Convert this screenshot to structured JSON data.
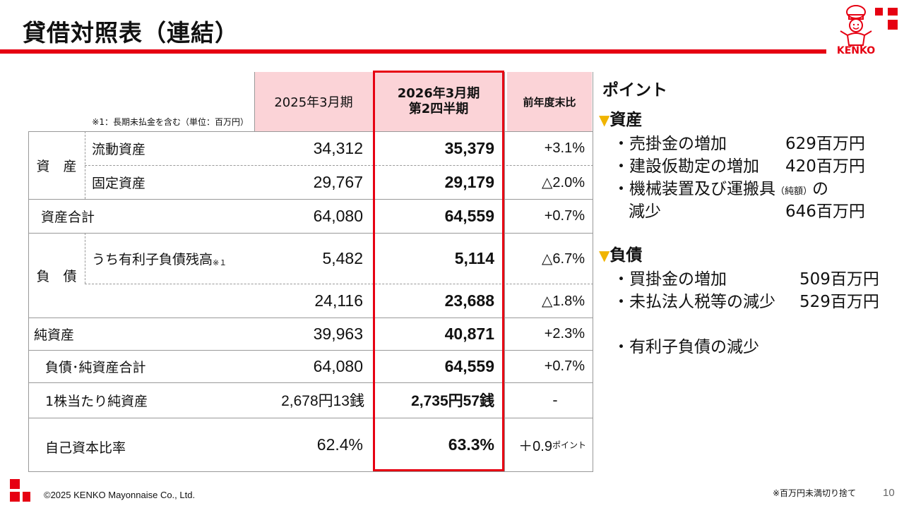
{
  "header": {
    "title": "貸借対照表（連結）",
    "logo_text": "KENKO"
  },
  "table": {
    "note": "※1：長期未払金を含む（単位：百万円）",
    "columns": {
      "prev": "2025年3月期",
      "curr_line1": "2026年3月期",
      "curr_line2": "第2四半期",
      "diff": "前年度末比"
    },
    "asset_group": "資　産",
    "liab_group": "負　債",
    "rows": {
      "current_assets": {
        "label": "流動資産",
        "prev": "34,312",
        "curr": "35,379",
        "diff": "+3.1%"
      },
      "fixed_assets": {
        "label": "固定資産",
        "prev": "29,767",
        "curr": "29,179",
        "diff": "△2.0%"
      },
      "total_assets": {
        "label": "資産合計",
        "prev": "64,080",
        "curr": "64,559",
        "diff": "+0.7%"
      },
      "interest_debt": {
        "label": "うち有利子負債残高",
        "sup": "※１",
        "prev": "5,482",
        "curr": "5,114",
        "diff": "△6.7%"
      },
      "liabilities": {
        "prev": "24,116",
        "curr": "23,688",
        "diff": "△1.8%"
      },
      "net_assets": {
        "label": "純資産",
        "prev": "39,963",
        "curr": "40,871",
        "diff": "+2.3%"
      },
      "total_liab_net": {
        "label": "負債･純資産合計",
        "prev": "64,080",
        "curr": "64,559",
        "diff": "+0.7%"
      },
      "bps": {
        "label": "1株当たり純資産",
        "prev": "2,678円13銭",
        "curr": "2,735円57銭",
        "diff": "-"
      },
      "equity_ratio": {
        "label": "自己資本比率",
        "prev": "62.4%",
        "curr": "63.3%",
        "diff": "＋0.9",
        "diff_unit": "ポイント"
      }
    }
  },
  "points": {
    "title": "ポイント",
    "marker": "▼",
    "assets": {
      "heading": "資産",
      "items": [
        {
          "text": "・売掛金の増加",
          "amount": "629百万円"
        },
        {
          "text": "・建設仮勘定の増加",
          "amount": "420百万円"
        },
        {
          "text": "・機械装置及び運搬具",
          "small": "（純額）",
          "suffix": "の"
        },
        {
          "text": "減少",
          "amount": "646百万円"
        }
      ]
    },
    "liabilities": {
      "heading": "負債",
      "items": [
        {
          "text": "・買掛金の増加",
          "amount": "509百万円"
        },
        {
          "text": "・未払法人税等の減少",
          "amount": "529百万円"
        },
        {
          "text": "・有利子負債の減少"
        }
      ]
    }
  },
  "footer": {
    "copyright": "©2025 KENKO Mayonnaise Co., Ltd.",
    "note": "※百万円未満切り捨て",
    "page": "10"
  },
  "colors": {
    "accent": "#e60012",
    "header_fill": "#fbd3d7",
    "marker": "#f0b400"
  }
}
